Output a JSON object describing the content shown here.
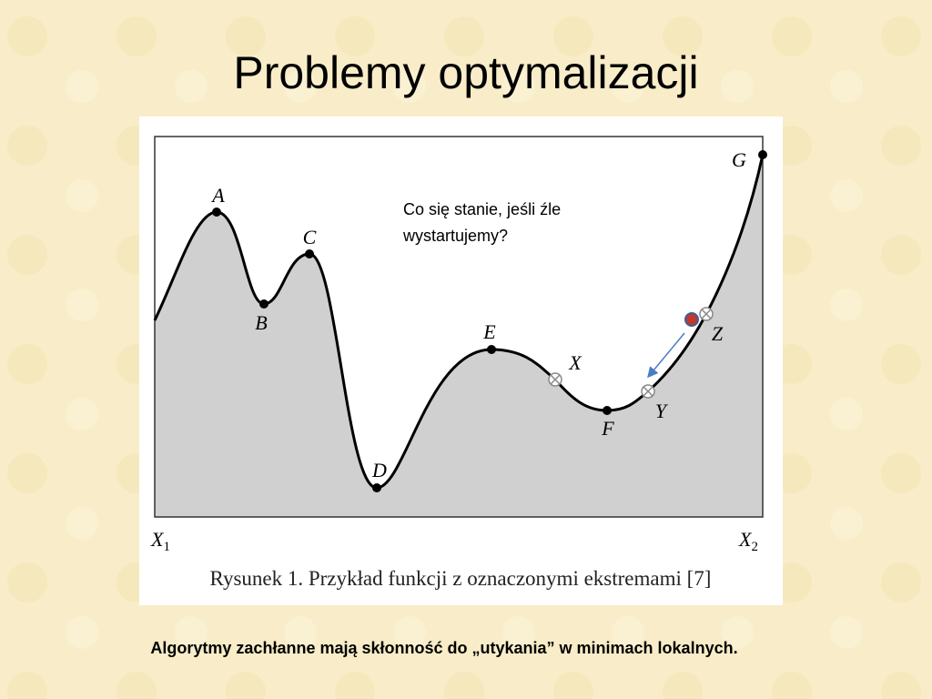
{
  "slide": {
    "title": "Problemy optymalizacji",
    "figure": {
      "points": [
        "A",
        "B",
        "C",
        "D",
        "E",
        "X",
        "F",
        "Y",
        "Z",
        "G"
      ],
      "x_start": {
        "letter": "X",
        "subscript": "1"
      },
      "x_end": {
        "letter": "X",
        "subscript": "2"
      },
      "caption": "Rysunek 1. Przykład funkcji z oznaczonymi ekstremami [7]",
      "annotation": [
        "Co się stanie, jeśli źle",
        "wystartujemy?"
      ]
    },
    "footer": "Algorytmy zachłanne mają skłonność do „utykania” w minimach lokalnych."
  }
}
